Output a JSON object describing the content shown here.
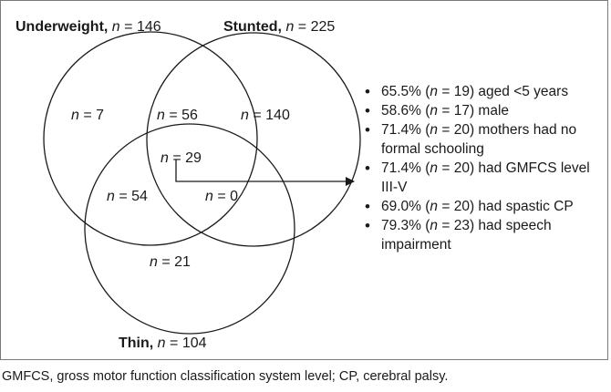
{
  "sets": {
    "underweight": {
      "name": "Underweight,",
      "n_symbol": "n",
      "n_value": " = 146"
    },
    "stunted": {
      "name": "Stunted,",
      "n_symbol": "n",
      "n_value": " = 225"
    },
    "thin": {
      "name": "Thin,",
      "n_symbol": "n",
      "n_value": " = 104"
    }
  },
  "regions": {
    "underweight_only": {
      "n_symbol": "n",
      "n_value": " = 7"
    },
    "underweight_stunted": {
      "n_symbol": "n",
      "n_value": " = 56"
    },
    "stunted_only": {
      "n_symbol": "n",
      "n_value": " = 140"
    },
    "all_three": {
      "n_symbol": "n",
      "n_value": " = 29"
    },
    "underweight_thin": {
      "n_symbol": "n",
      "n_value": " = 54"
    },
    "stunted_thin": {
      "n_symbol": "n",
      "n_value": " = 0"
    },
    "thin_only": {
      "n_symbol": "n",
      "n_value": " = 21"
    }
  },
  "characteristics": [
    {
      "pre": "65.5% (",
      "n_symbol": "n",
      "post": " = 19) aged <5 years"
    },
    {
      "pre": "58.6% (",
      "n_symbol": "n",
      "post": " = 17) male"
    },
    {
      "pre": "71.4% (",
      "n_symbol": "n",
      "post": " = 20) mothers had no formal schooling"
    },
    {
      "pre": "71.4% (",
      "n_symbol": "n",
      "post": " = 20) had GMFCS level III-V"
    },
    {
      "pre": "69.0% (",
      "n_symbol": "n",
      "post": " = 20) had spastic CP"
    },
    {
      "pre": "79.3% (",
      "n_symbol": "n",
      "post": " = 23) had speech impairment"
    }
  ],
  "footnote": "GMFCS, gross motor function classification system level; CP, cerebral palsy.",
  "colors": {
    "stroke": "#1a1a1a",
    "frame": "#7a7a7a"
  }
}
